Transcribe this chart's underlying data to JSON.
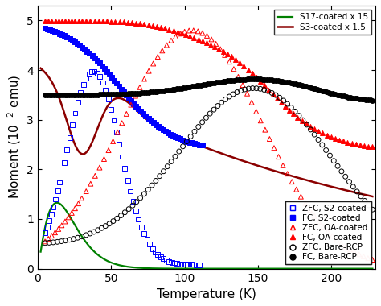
{
  "xlim": [
    0,
    230
  ],
  "ylim": [
    0,
    5.3
  ],
  "xlabel": "Temperature (K)",
  "xticks": [
    0,
    50,
    100,
    150,
    200
  ],
  "yticks": [
    0,
    1,
    2,
    3,
    4,
    5
  ],
  "legend1_entries": [
    "S17-coated x 15",
    "S3-coated x 1.5"
  ],
  "legend1_colors": [
    "#008000",
    "#8B0000"
  ],
  "legend2_entries": [
    "ZFC, S2-coated",
    "FC, S2-coated",
    "ZFC, OA-coated",
    "FC, OA-coated",
    "ZFC, Bare-RCP",
    "FC, Bare-RCP"
  ],
  "background_color": "#ffffff",
  "tick_fontsize": 10,
  "label_fontsize": 11
}
